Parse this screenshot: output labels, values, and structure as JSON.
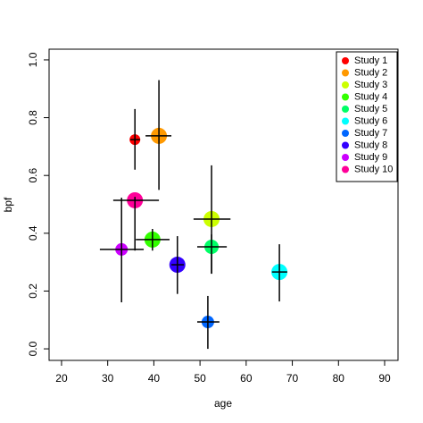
{
  "chart_data": {
    "type": "scatter",
    "x_label": "age",
    "y_label": "bpf",
    "xlim": [
      17.3,
      92.9
    ],
    "ylim": [
      -0.04,
      1.037
    ],
    "xticks": [
      20,
      30,
      40,
      50,
      60,
      70,
      80,
      90
    ],
    "yticks": [
      {
        "value": 0,
        "label": "0.0"
      },
      0.2,
      0.4,
      0.6,
      0.8,
      {
        "value": 1,
        "label": "1.0"
      }
    ],
    "legend": "top-right",
    "series": [
      {
        "name": "Study 1",
        "color": "#FF0000",
        "x": 35.9,
        "y": 0.724,
        "xlo": 34.9,
        "xhi": 37.0,
        "ylo": 0.62,
        "yhi": 0.83,
        "size": 6
      },
      {
        "name": "Study 2",
        "color": "#FF9900",
        "x": 41.1,
        "y": 0.737,
        "xlo": 38.2,
        "xhi": 43.8,
        "ylo": 0.55,
        "yhi": 0.93,
        "size": 9
      },
      {
        "name": "Study 3",
        "color": "#CCFF00",
        "x": 52.5,
        "y": 0.449,
        "xlo": 48.6,
        "xhi": 56.6,
        "ylo": 0.26,
        "yhi": 0.635,
        "size": 9
      },
      {
        "name": "Study 4",
        "color": "#33FF00",
        "x": 39.7,
        "y": 0.378,
        "xlo": 36.1,
        "xhi": 43.4,
        "ylo": 0.34,
        "yhi": 0.415,
        "size": 9
      },
      {
        "name": "Study 5",
        "color": "#00FF66",
        "x": 52.5,
        "y": 0.353,
        "xlo": 49.4,
        "xhi": 55.8,
        "ylo": 0.26,
        "yhi": 0.396,
        "size": 8
      },
      {
        "name": "Study 6",
        "color": "#00FFFF",
        "x": 67.2,
        "y": 0.266,
        "xlo": 65.6,
        "xhi": 68.9,
        "ylo": 0.164,
        "yhi": 0.362,
        "size": 9
      },
      {
        "name": "Study 7",
        "color": "#0066FF",
        "x": 51.7,
        "y": 0.093,
        "xlo": 49.4,
        "xhi": 54.2,
        "ylo": 0.0,
        "yhi": 0.183,
        "size": 7
      },
      {
        "name": "Study 8",
        "color": "#3300FF",
        "x": 45.1,
        "y": 0.291,
        "xlo": 43.8,
        "xhi": 46.5,
        "ylo": 0.19,
        "yhi": 0.39,
        "size": 9
      },
      {
        "name": "Study 9",
        "color": "#CC00FF",
        "x": 33.0,
        "y": 0.344,
        "xlo": 28.3,
        "xhi": 37.8,
        "ylo": 0.161,
        "yhi": 0.523,
        "size": 7
      },
      {
        "name": "Study 10",
        "color": "#FF0099",
        "x": 35.9,
        "y": 0.514,
        "xlo": 31.2,
        "xhi": 41.1,
        "ylo": 0.34,
        "yhi": 0.526,
        "size": 9
      }
    ]
  }
}
